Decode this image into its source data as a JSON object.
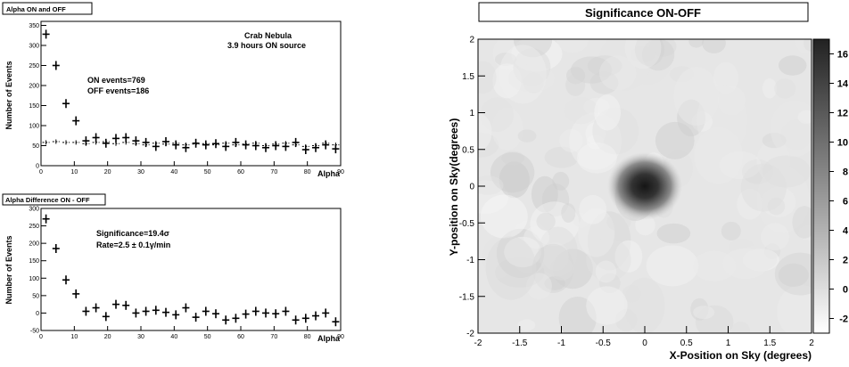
{
  "chart_data": [
    {
      "type": "scatter",
      "title": "Alpha ON and OFF",
      "xlabel": "Alpha",
      "ylabel": "Number of Events",
      "xlim": [
        0,
        90
      ],
      "ylim": [
        0,
        360
      ],
      "xticks": [
        0,
        10,
        20,
        30,
        40,
        50,
        60,
        70,
        80,
        90
      ],
      "yticks": [
        0,
        50,
        100,
        150,
        200,
        250,
        300,
        350
      ],
      "annotations": [
        "Crab Nebula",
        "3.9 hours ON source",
        "ON events=769",
        "OFF events=186"
      ],
      "series": [
        {
          "x": [
            1.5,
            4.5,
            7.5,
            10.5,
            13.5,
            16.5,
            19.5,
            22.5,
            25.5,
            28.5,
            31.5,
            34.5,
            37.5,
            40.5,
            43.5,
            46.5,
            49.5,
            52.5,
            55.5,
            58.5,
            61.5,
            64.5,
            67.5,
            70.5,
            73.5,
            76.5,
            79.5,
            82.5,
            85.5,
            88.5
          ],
          "values": [
            328,
            250,
            155,
            112,
            62,
            70,
            56,
            68,
            70,
            62,
            58,
            48,
            60,
            52,
            45,
            56,
            52,
            55,
            48,
            58,
            52,
            50,
            45,
            50,
            48,
            58,
            40,
            45,
            52,
            42
          ]
        },
        {
          "x": [
            1.5,
            4.5,
            7.5,
            10.5,
            13.5,
            16.5,
            19.5,
            22.5,
            25.5,
            28.5,
            31.5,
            34.5,
            37.5,
            40.5,
            43.5,
            46.5,
            49.5,
            52.5,
            55.5,
            58.5,
            61.5,
            64.5,
            67.5,
            70.5,
            73.5,
            76.5,
            79.5,
            82.5,
            85.5,
            88.5
          ],
          "values": [
            58,
            60,
            58,
            58,
            55,
            58,
            60,
            55,
            58,
            55,
            52,
            56,
            54,
            56,
            52,
            54,
            55,
            52,
            56,
            52,
            54,
            56,
            50,
            54,
            56,
            52,
            48,
            50,
            56,
            52
          ]
        }
      ]
    },
    {
      "type": "scatter",
      "title": "Alpha Difference ON - OFF",
      "xlabel": "Alpha",
      "ylabel": "Number of Events",
      "xlim": [
        0,
        90
      ],
      "ylim": [
        -50,
        300
      ],
      "xticks": [
        0,
        10,
        20,
        30,
        40,
        50,
        60,
        70,
        80,
        90
      ],
      "yticks": [
        -50,
        0,
        50,
        100,
        150,
        200,
        250,
        300
      ],
      "annotations": [
        "Significance=19.4σ",
        "Rate=2.5 ± 0.1γ/min"
      ],
      "series": [
        {
          "x": [
            1.5,
            4.5,
            7.5,
            10.5,
            13.5,
            16.5,
            19.5,
            22.5,
            25.5,
            28.5,
            31.5,
            34.5,
            37.5,
            40.5,
            43.5,
            46.5,
            49.5,
            52.5,
            55.5,
            58.5,
            61.5,
            64.5,
            67.5,
            70.5,
            73.5,
            76.5,
            79.5,
            82.5,
            85.5,
            88.5
          ],
          "values": [
            270,
            185,
            95,
            55,
            5,
            15,
            -10,
            25,
            22,
            0,
            5,
            8,
            2,
            -5,
            15,
            -12,
            5,
            -2,
            -20,
            -15,
            -3,
            5,
            0,
            -2,
            5,
            -20,
            -15,
            -8,
            0,
            -25
          ]
        }
      ]
    },
    {
      "type": "heatmap",
      "title": "Significance ON-OFF",
      "xlabel": "X-Position on Sky (degrees)",
      "ylabel": "Y-position on Sky(degrees)",
      "xlim": [
        -2,
        2
      ],
      "ylim": [
        -2,
        2
      ],
      "xticks": [
        -2,
        -1.5,
        -1,
        -0.5,
        0,
        0.5,
        1,
        1.5,
        2
      ],
      "yticks": [
        -2,
        -1.5,
        -1,
        -0.5,
        0,
        0.5,
        1,
        1.5,
        2
      ],
      "colorbar_ticks": [
        -2,
        0,
        2,
        4,
        6,
        8,
        10,
        12,
        14,
        16
      ],
      "colorbar_range": [
        -3,
        17
      ],
      "peak": {
        "x": 0,
        "y": 0,
        "value": 17
      }
    }
  ]
}
